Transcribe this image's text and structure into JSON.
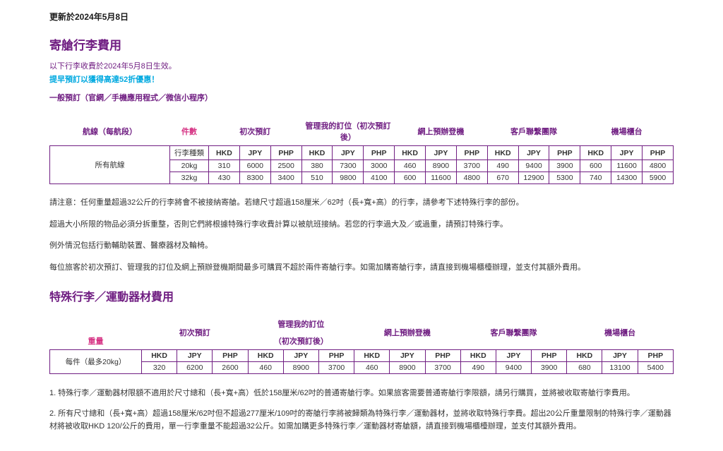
{
  "update_date": "更新於2024年5月8日",
  "section1": {
    "title": "寄艙行李費用",
    "sub": "以下行李收費於2024年5月8日生效。",
    "promo": "提早預訂以獲得高達52折優惠！",
    "booking": "一般預訂（官網／手機應用程式／微信小程序）",
    "headers": {
      "route": "航線（每航段）",
      "pieces": "件數",
      "cols": [
        "初次預訂",
        "管理我的訂位（初次預訂後）",
        "網上預辦登機",
        "客戶聯繫團隊",
        "機場櫃台"
      ]
    },
    "route_label": "所有航線",
    "type_col_label": "行李種類",
    "currencies": [
      "HKD",
      "JPY",
      "PHP",
      "HKD",
      "JPY",
      "PHP",
      "HKD",
      "JPY",
      "PHP",
      "HKD",
      "JPY",
      "PHP",
      "HKD",
      "JPY",
      "PHP"
    ],
    "rows": [
      {
        "type": "20kg",
        "vals": [
          "310",
          "6000",
          "2500",
          "380",
          "7300",
          "3000",
          "460",
          "8900",
          "3700",
          "490",
          "9400",
          "3900",
          "600",
          "11600",
          "4800"
        ]
      },
      {
        "type": "32kg",
        "vals": [
          "430",
          "8300",
          "3400",
          "510",
          "9800",
          "4100",
          "600",
          "11600",
          "4800",
          "670",
          "12900",
          "5300",
          "740",
          "14300",
          "5900"
        ]
      }
    ],
    "notes": [
      "請注意：任何重量超過32公斤的行李將會不被接納寄艙。若總尺寸超過158厘米／62吋（長+寬+高）的行李，請參考下述特殊行李的部份。",
      "超過大小所限的物品必須分拆重整，否則它們將根據特殊行李收費計算以被航班接納。若您的行李過大及／或過重，請預訂特殊行李。",
      "例外情況包括行動輔助裝置、醫療器材及輪椅。",
      "每位旅客於初次預訂、管理我的訂位及網上預辦登機期間最多可購買不超於兩件寄艙行李。如需加購寄艙行李，請直接到機場櫃檯辦理，並支付其額外費用。"
    ]
  },
  "section2": {
    "title": "特殊行李／運動器材費用",
    "headers": {
      "weight": "重量",
      "cols_line1": [
        "初次預訂",
        "管理我的訂位",
        "網上預辦登機",
        "客戶聯繫團隊",
        "機場櫃台"
      ],
      "cols_line2": [
        "",
        "（初次預訂後）",
        "",
        "",
        ""
      ]
    },
    "weight_label": "每件（最多20kg）",
    "currencies": [
      "HKD",
      "JPY",
      "PHP",
      "HKD",
      "JPY",
      "PHP",
      "HKD",
      "JPY",
      "PHP",
      "HKD",
      "JPY",
      "PHP",
      "HKD",
      "JPY",
      "PHP"
    ],
    "row": [
      "320",
      "6200",
      "2600",
      "460",
      "8900",
      "3700",
      "460",
      "8900",
      "3700",
      "490",
      "9400",
      "3900",
      "680",
      "13100",
      "5400"
    ],
    "footnotes": [
      "1. 特殊行李／運動器材限額不適用於尺寸總和（長+寬+高）低於158厘米/62吋的普通寄艙行李。如果旅客需要普通寄艙行李限額，請另行購買，並將被收取寄艙行李費用。",
      "2. 所有尺寸總和（長+寬+高）超過158厘米/62吋但不超過277厘米/109吋的寄艙行李將被歸類為特殊行李／運動器材，並將收取特殊行李費。超出20公斤重量限制的特殊行李／運動器材將被收取HKD 120/公斤的費用，單一行李重量不能超過32公斤。如需加購更多特殊行李／運動器材寄艙額，請直接到機場櫃檯辦理，並支付其額外費用。"
    ]
  }
}
